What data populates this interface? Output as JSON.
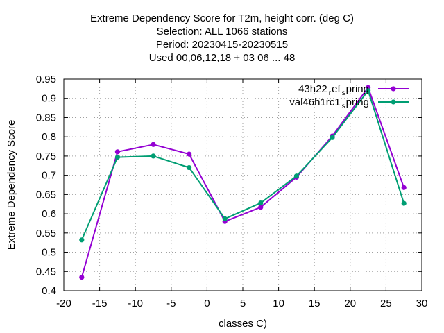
{
  "title_lines": [
    "Extreme Dependency Score  for T2m, height corr. (deg C)",
    "Selection: ALL   1066 stations",
    "Period: 20230415-20230515",
    "Used  00,06,12,18  + 03 06 ... 48"
  ],
  "chart_data": {
    "type": "line",
    "xlabel": "classes C)",
    "ylabel": "Extreme Dependency Score",
    "xlim": [
      -20,
      30
    ],
    "ylim": [
      0.4,
      0.95
    ],
    "xticks": [
      -20,
      -15,
      -10,
      -5,
      0,
      5,
      10,
      15,
      20,
      25,
      30
    ],
    "yticks": [
      0.4,
      0.45,
      0.5,
      0.55,
      0.6,
      0.65,
      0.7,
      0.75,
      0.8,
      0.85,
      0.9,
      0.95
    ],
    "grid": true,
    "legend_position": "top-right",
    "x": [
      -17.5,
      -12.5,
      -7.5,
      -2.5,
      2.5,
      7.5,
      12.5,
      17.5,
      22.5,
      27.5
    ],
    "series": [
      {
        "name": "43h22_ref_spring",
        "label_parts": [
          "43h22",
          "r",
          "ef",
          "s",
          "pring"
        ],
        "color": "#9400d3",
        "values": [
          0.435,
          0.761,
          0.78,
          0.755,
          0.58,
          0.617,
          0.695,
          0.802,
          0.928,
          0.668
        ]
      },
      {
        "name": "val46h1rc1_spring",
        "label_parts": [
          "val46h1rc1",
          "",
          "",
          "s",
          "pring"
        ],
        "color": "#009e73",
        "values": [
          0.532,
          0.747,
          0.75,
          0.72,
          0.587,
          0.628,
          0.698,
          0.798,
          0.92,
          0.627
        ]
      }
    ]
  }
}
